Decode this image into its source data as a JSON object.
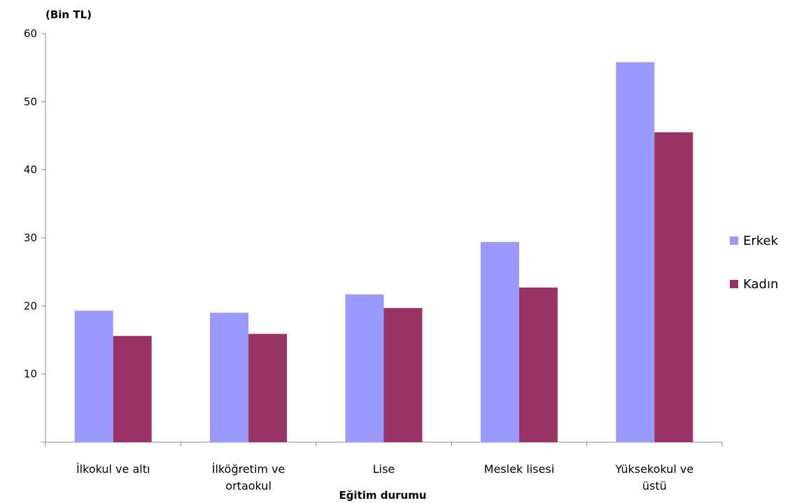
{
  "chart_data": {
    "type": "bar",
    "title": "",
    "unit_label": "(Bin TL)",
    "xlabel": "Eğitim durumu",
    "ylabel": "",
    "ylim": [
      0,
      60
    ],
    "yticks": [
      "10",
      "20",
      "30",
      "40",
      "50",
      "60"
    ],
    "categories": [
      [
        "İlkokul ve altı"
      ],
      [
        "İlköğretim ve",
        "ortaokul"
      ],
      [
        "Lise"
      ],
      [
        "Meslek lisesi"
      ],
      [
        "Yüksekokul ve",
        "üstü"
      ]
    ],
    "series": [
      {
        "name": "Erkek",
        "color": "#9999ff",
        "values": [
          19.3,
          19.0,
          21.7,
          29.4,
          55.8
        ]
      },
      {
        "name": "Kadın",
        "color": "#993366",
        "values": [
          15.6,
          15.9,
          19.7,
          22.7,
          45.5
        ]
      }
    ],
    "grid": false,
    "legend": "right"
  }
}
